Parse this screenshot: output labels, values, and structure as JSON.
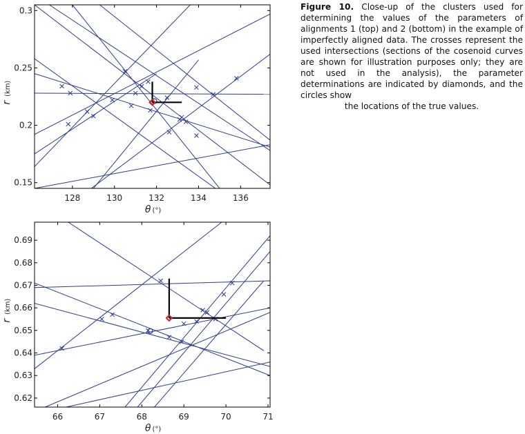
{
  "caption": {
    "label": "Figure 10.",
    "text": "Close-up of the clusters used for determining the values of the parameters of alignments 1 (top) and 2 (bottom) in the example of imperfectly aligned data. The crosses represent the used intersections (sections of the cosenoid curves are shown for illustration purposes only; they are not used in the analysis), the parameter determinations are indicated by diamonds, and the circles show",
    "last_line": "the locations of the true values."
  },
  "colors": {
    "curve": "#2d3c8c",
    "diamond": "#d0202a",
    "errorbar": "#000000",
    "axis": "#000000"
  },
  "chart_data": [
    {
      "type": "line",
      "xlabel": "θ",
      "xunit": "(°)",
      "ylabel": "r",
      "yunit": "(km)",
      "xlim": [
        126.2,
        137.4
      ],
      "ylim": [
        0.145,
        0.305
      ],
      "xticks": [
        128,
        130,
        132,
        134,
        136
      ],
      "yticks": [
        0.15,
        0.2,
        0.25,
        0.3
      ],
      "ytick_labels": [
        "0.15",
        "0.2",
        "0.25",
        "0.3"
      ],
      "curves": [
        [
          [
            126.2,
            0.305
          ],
          [
            137.4,
            0.148
          ]
        ],
        [
          [
            126.9,
            0.305
          ],
          [
            137.4,
            0.178
          ]
        ],
        [
          [
            128.0,
            0.305
          ],
          [
            135.0,
            0.145
          ]
        ],
        [
          [
            126.2,
            0.192
          ],
          [
            137.4,
            0.297
          ]
        ],
        [
          [
            126.2,
            0.145
          ],
          [
            137.4,
            0.183
          ]
        ],
        [
          [
            126.2,
            0.245
          ],
          [
            137.4,
            0.181
          ]
        ],
        [
          [
            126.2,
            0.228
          ],
          [
            137.4,
            0.227
          ]
        ],
        [
          [
            126.2,
            0.258
          ],
          [
            134.8,
            0.145
          ]
        ],
        [
          [
            126.2,
            0.164
          ],
          [
            133.6,
            0.305
          ]
        ],
        [
          [
            128.9,
            0.145
          ],
          [
            137.4,
            0.262
          ]
        ],
        [
          [
            129.3,
            0.305
          ],
          [
            137.4,
            0.187
          ]
        ],
        [
          [
            126.2,
            0.175
          ],
          [
            132.0,
            0.245
          ]
        ],
        [
          [
            129.0,
            0.145
          ],
          [
            134.0,
            0.257
          ]
        ]
      ],
      "crosses": [
        [
          127.5,
          0.234
        ],
        [
          127.9,
          0.228
        ],
        [
          128.7,
          0.212
        ],
        [
          129.0,
          0.208
        ],
        [
          129.9,
          0.222
        ],
        [
          130.5,
          0.247
        ],
        [
          130.8,
          0.217
        ],
        [
          131.0,
          0.228
        ],
        [
          131.3,
          0.234
        ],
        [
          131.6,
          0.238
        ],
        [
          131.7,
          0.213
        ],
        [
          132.5,
          0.224
        ],
        [
          132.6,
          0.194
        ],
        [
          133.1,
          0.205
        ],
        [
          133.2,
          0.207
        ],
        [
          133.4,
          0.203
        ],
        [
          133.9,
          0.191
        ],
        [
          133.9,
          0.233
        ],
        [
          134.7,
          0.227
        ],
        [
          135.8,
          0.241
        ],
        [
          127.8,
          0.201
        ]
      ],
      "estimate": {
        "theta": 131.8,
        "r": 0.22,
        "theta_err_high": 133.2,
        "r_err_high": 0.238
      },
      "true_value": {
        "theta": 131.9,
        "r": 0.221
      }
    },
    {
      "type": "line",
      "xlabel": "θ",
      "xunit": "(°)",
      "ylabel": "r",
      "yunit": "(km)",
      "xlim": [
        65.45,
        71.05
      ],
      "ylim": [
        0.616,
        0.698
      ],
      "xticks": [
        66,
        67,
        68,
        69,
        70,
        71
      ],
      "yticks": [
        0.62,
        0.63,
        0.64,
        0.65,
        0.66,
        0.67,
        0.68,
        0.69
      ],
      "ytick_labels": [
        "0.62",
        "0.63",
        "0.64",
        "0.65",
        "0.66",
        "0.67",
        "0.68",
        "0.69"
      ],
      "curves": [
        [
          [
            65.45,
            0.669
          ],
          [
            71.05,
            0.672
          ]
        ],
        [
          [
            65.45,
            0.662
          ],
          [
            71.05,
            0.634
          ]
        ],
        [
          [
            65.45,
            0.671
          ],
          [
            71.05,
            0.63
          ]
        ],
        [
          [
            65.45,
            0.639
          ],
          [
            71.05,
            0.66
          ]
        ],
        [
          [
            65.45,
            0.633
          ],
          [
            69.9,
            0.698
          ]
        ],
        [
          [
            66.25,
            0.698
          ],
          [
            70.9,
            0.641
          ]
        ],
        [
          [
            67.6,
            0.616
          ],
          [
            71.05,
            0.692
          ]
        ],
        [
          [
            67.9,
            0.616
          ],
          [
            71.05,
            0.685
          ]
        ],
        [
          [
            65.7,
            0.616
          ],
          [
            71.05,
            0.658
          ]
        ],
        [
          [
            66.2,
            0.616
          ],
          [
            71.05,
            0.636
          ]
        ],
        [
          [
            68.3,
            0.616
          ],
          [
            70.9,
            0.672
          ]
        ]
      ],
      "crosses": [
        [
          66.1,
          0.642
        ],
        [
          67.05,
          0.655
        ],
        [
          67.3,
          0.657
        ],
        [
          68.15,
          0.65
        ],
        [
          68.45,
          0.672
        ],
        [
          68.65,
          0.647
        ],
        [
          68.95,
          0.645
        ],
        [
          69.0,
          0.653
        ],
        [
          69.3,
          0.654
        ],
        [
          69.45,
          0.659
        ],
        [
          69.55,
          0.658
        ],
        [
          69.75,
          0.655
        ],
        [
          69.95,
          0.666
        ],
        [
          70.15,
          0.671
        ]
      ],
      "estimate": {
        "theta": 68.65,
        "r": 0.6555,
        "theta_err_high": 70.0,
        "r_err_high": 0.673
      },
      "true_value": {
        "theta": 68.2,
        "r": 0.6497
      }
    }
  ]
}
